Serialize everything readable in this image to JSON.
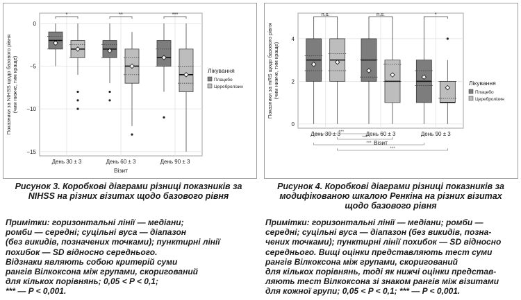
{
  "chart_data": [
    {
      "type": "box",
      "ylabel_line1": "Показники за NIHSS щодо базового рівня",
      "ylabel_line2": "(чим нижче, тим краще)",
      "xlabel": "Візит",
      "categories": [
        "День 30 ± 3",
        "День 60 ± 3",
        "День 90 ± 3"
      ],
      "ylim": [
        -15.5,
        1.2
      ],
      "yticks": [
        0,
        -5,
        -10,
        -15
      ],
      "grid": true,
      "legend": {
        "title": "Лікування",
        "position": "right",
        "items": [
          "Плацебо",
          "Церебролізин"
        ]
      },
      "significance": [
        "*",
        "**",
        "***"
      ],
      "series": [
        {
          "name": "Плацебо",
          "color": "#7d7d7d",
          "boxes": [
            {
              "q1": -3,
              "median": -2,
              "q3": -1,
              "whisker_low": -5,
              "whisker_high": 0,
              "ci_low": -3,
              "ci_high": -1.5,
              "mean": -2.3,
              "outliers": []
            },
            {
              "q1": -4,
              "median": -3,
              "q3": -2,
              "whisker_low": -7,
              "whisker_high": 0,
              "ci_low": -4,
              "ci_high": -2.5,
              "mean": -3.2,
              "outliers": [
                -8,
                -9
              ]
            },
            {
              "q1": -5,
              "median": -4,
              "q3": -2,
              "whisker_low": -8,
              "whisker_high": 0,
              "ci_low": -5,
              "ci_high": -3,
              "mean": -4,
              "outliers": [
                -11
              ]
            }
          ]
        },
        {
          "name": "Церебролізин",
          "color": "#bdbdbd",
          "boxes": [
            {
              "q1": -4,
              "median": -3,
              "q3": -2,
              "whisker_low": -6,
              "whisker_high": 0,
              "ci_low": -4,
              "ci_high": -2.5,
              "mean": -3,
              "outliers": [
                -8,
                -9,
                -10
              ]
            },
            {
              "q1": -7,
              "median": -5,
              "q3": -3,
              "whisker_low": -12,
              "whisker_high": -1,
              "ci_low": -6,
              "ci_high": -4,
              "mean": -5,
              "outliers": [
                -13
              ]
            },
            {
              "q1": -8,
              "median": -6,
              "q3": -3,
              "whisker_low": -15,
              "whisker_high": 0,
              "ci_low": -7,
              "ci_high": -5,
              "mean": -6,
              "outliers": []
            }
          ]
        }
      ]
    },
    {
      "type": "box",
      "ylabel_line1": "Показники за mRS щодо базового рівня",
      "ylabel_line2": "(чим нижче, тим краще)",
      "xlabel": "Візит",
      "categories": [
        "День 30 ± 3",
        "День 60 ± 3",
        "День 90 ± 3"
      ],
      "ylim": [
        -0.2,
        5.2
      ],
      "yticks": [
        0,
        2,
        4
      ],
      "grid": true,
      "legend": {
        "title": "Лікування",
        "position": "right",
        "items": [
          "Плацебо",
          "Церебролізин"
        ]
      },
      "significance": [
        "n.s.",
        "n.s.",
        "*"
      ],
      "between_visits": [
        "***",
        "***",
        "***",
        "***"
      ],
      "series": [
        {
          "name": "Плацебо",
          "color": "#7d7d7d",
          "boxes": [
            {
              "q1": 2,
              "median": 3,
              "q3": 4,
              "whisker_low": 0,
              "whisker_high": 5,
              "ci_low": 2.5,
              "ci_high": 3.2,
              "mean": 2.8,
              "outliers": []
            },
            {
              "q1": 2,
              "median": 3,
              "q3": 4,
              "whisker_low": 0,
              "whisker_high": 5,
              "ci_low": 2.2,
              "ci_high": 3,
              "mean": 2.5,
              "outliers": []
            },
            {
              "q1": 1,
              "median": 2,
              "q3": 3,
              "whisker_low": 0,
              "whisker_high": 5,
              "ci_low": 1.8,
              "ci_high": 2.5,
              "mean": 2.2,
              "outliers": []
            }
          ]
        },
        {
          "name": "Церебролізин",
          "color": "#bdbdbd",
          "boxes": [
            {
              "q1": 2,
              "median": 3,
              "q3": 4,
              "whisker_low": 0,
              "whisker_high": 5,
              "ci_low": 2.5,
              "ci_high": 3.3,
              "mean": 2.9,
              "outliers": []
            },
            {
              "q1": 1,
              "median": 2,
              "q3": 3,
              "whisker_low": 0,
              "whisker_high": 5,
              "ci_low": 2,
              "ci_high": 2.8,
              "mean": 2.3,
              "outliers": []
            },
            {
              "q1": 1,
              "median": 1,
              "q3": 2,
              "whisker_low": 0,
              "whisker_high": 3,
              "ci_low": 1.2,
              "ci_high": 2,
              "mean": 1.7,
              "outliers": [
                4
              ]
            }
          ]
        }
      ]
    }
  ],
  "captions": {
    "left": "Рисунок 3. Коробкові діаграми різниці показників за NIHSS на різних візитах щодо базового рівня",
    "right": "Рисунок 4. Коробкові діаграми різниці показників за модифікованою шкалою Ренкіна на різних візитах щодо базового рівня"
  },
  "notes": {
    "left": [
      "Примітки: горизонтальні лінії — медіани;",
      "ромби — середні; суцільні вуса — діапазон",
      "(без викидів, позначених точками); пунктирні лінії",
      "похибок — SD відносно середнього.",
      "Відзнаки являють собою критерій суми",
      "рангів Вілкоксона між групами, скоригований",
      "для кількох порівнянь; 0,05 < P < 0,1;",
      "*** — P < 0,001."
    ],
    "right": [
      "Примітки: горизонтальні лінії — медіани; ромби —",
      "середні; суцільні вуса — діапазон (без викидів, позна-",
      "чених точками); пунктирні лінії похибок — SD відносно",
      "середнього. Вищі оцінки представляють тест суми",
      "рангів Вілкоксона між групами, скоригований",
      "для кількох порівнянь, тоді як нижчі оцінки представ-",
      "ляють тест Вілкоксона зі знаком рангів між візитами",
      "для кожної групи; 0,05 < P < 0,1; *** — P < 0,001."
    ]
  }
}
